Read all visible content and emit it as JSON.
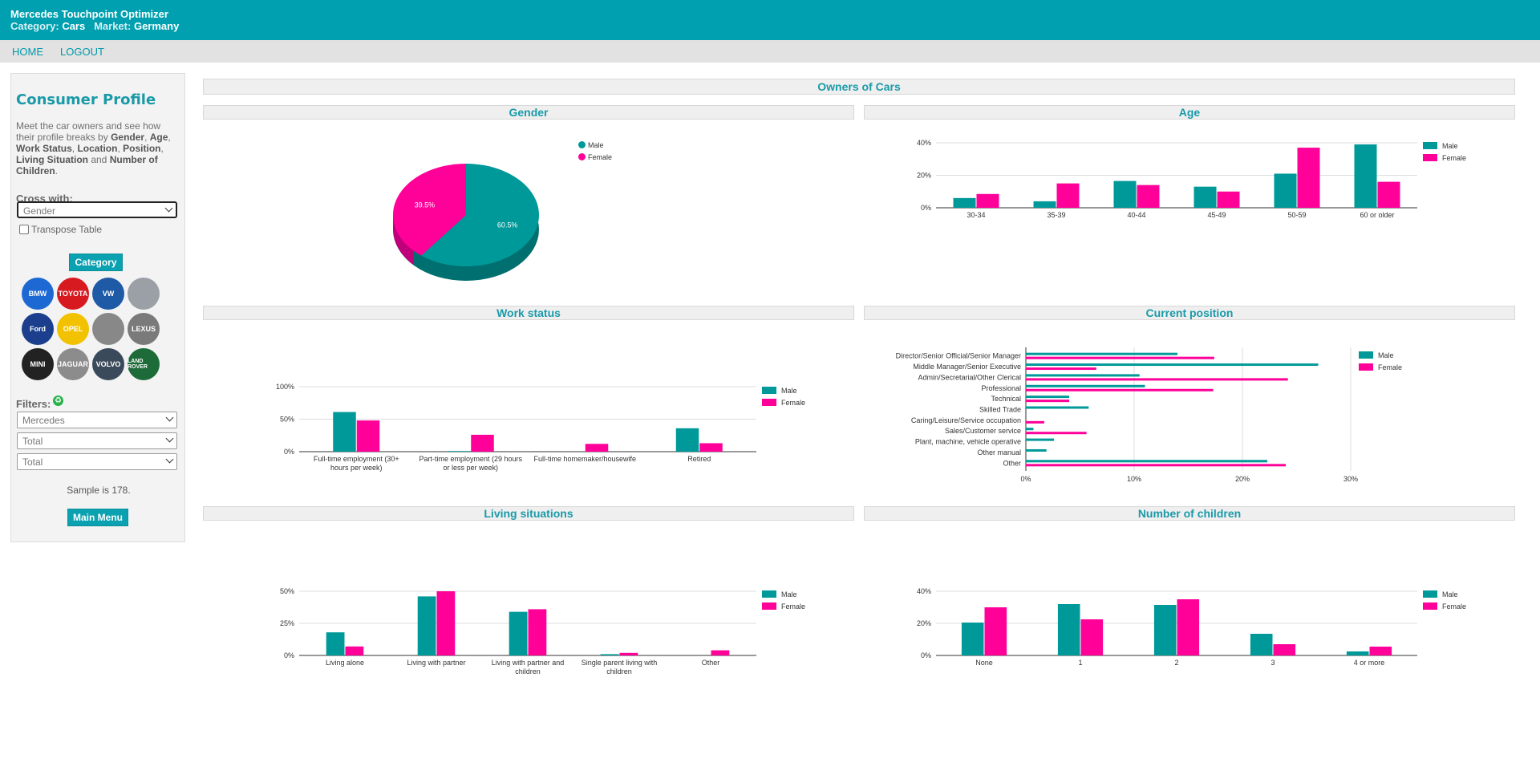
{
  "header": {
    "app_title": "Mercedes Touchpoint Optimizer",
    "category_label": "Category:",
    "category_value": "Cars",
    "market_label": "Market:",
    "market_value": "Germany"
  },
  "nav": {
    "home": "HOME",
    "logout": "LOGOUT"
  },
  "sidebar": {
    "title": "Consumer Profile",
    "desc_intro": "Meet the car owners and see how their profile breaks by ",
    "desc_terms": [
      "Gender",
      "Age",
      "Work Status",
      "Location",
      "Position",
      "Living Situation",
      "Number of Children"
    ],
    "desc_sep": ", ",
    "desc_and": " and ",
    "desc_end": ".",
    "cross_label": "Cross with:",
    "cross_value": "Gender",
    "transpose_label": "Transpose Table",
    "category_button": "Category",
    "logos": [
      {
        "name": "bmw-logo",
        "text": "BMW",
        "color": "#1c69d4"
      },
      {
        "name": "toyota-logo",
        "text": "TOYOTA",
        "color": "#d71920"
      },
      {
        "name": "volkswagen-logo",
        "text": "VW",
        "color": "#1f5aa6"
      },
      {
        "name": "mercedes-logo",
        "text": "",
        "color": "#9aa0a6"
      },
      {
        "name": "ford-logo",
        "text": "Ford",
        "color": "#1b3f8c"
      },
      {
        "name": "opel-logo",
        "text": "OPEL",
        "color": "#f2c200"
      },
      {
        "name": "audi-logo",
        "text": "",
        "color": "#888888"
      },
      {
        "name": "lexus-logo",
        "text": "LEXUS",
        "color": "#7a7a7a"
      },
      {
        "name": "mini-logo",
        "text": "MINI",
        "color": "#222222"
      },
      {
        "name": "jaguar-logo",
        "text": "JAGUAR",
        "color": "#8c8c8c"
      },
      {
        "name": "volvo-logo",
        "text": "VOLVO",
        "color": "#3b4a5a"
      },
      {
        "name": "land-rover-logo",
        "text": "LAND ROVER",
        "color": "#1e6b3a"
      }
    ],
    "filters_label": "Filters:",
    "filter1": "Mercedes",
    "filter2": "Total",
    "filter3": "Total",
    "sample": "Sample is 178.",
    "main_menu": "Main Menu"
  },
  "main": {
    "owners_title": "Owners of Cars"
  },
  "colors": {
    "male": "#009999",
    "female": "#ff0099"
  },
  "legend": {
    "male": "Male",
    "female": "Female"
  },
  "chart_data": [
    {
      "id": "gender",
      "type": "pie",
      "title": "Gender",
      "categories": [
        "Male",
        "Female"
      ],
      "values": [
        60.5,
        39.5
      ],
      "labels": [
        "60.5%",
        "39.5%"
      ]
    },
    {
      "id": "age",
      "type": "bar",
      "title": "Age",
      "categories": [
        "30-34",
        "35-39",
        "40-44",
        "45-49",
        "50-59",
        "60 or older"
      ],
      "series": [
        {
          "name": "Male",
          "values": [
            6,
            4,
            16.5,
            13,
            21,
            39
          ]
        },
        {
          "name": "Female",
          "values": [
            8.5,
            15,
            14,
            10,
            37,
            16
          ]
        }
      ],
      "yticks": [
        "0%",
        "20%",
        "40%"
      ],
      "ylim": [
        0,
        40
      ]
    },
    {
      "id": "work",
      "type": "bar",
      "title": "Work status",
      "categories": [
        "Full-time employment (30+ hours per week)",
        "Part-time employment (29 hours or less per week)",
        "Full-time homemaker/housewife",
        "Retired"
      ],
      "series": [
        {
          "name": "Male",
          "values": [
            61,
            1,
            0,
            36
          ]
        },
        {
          "name": "Female",
          "values": [
            48,
            26,
            12,
            13
          ]
        }
      ],
      "yticks": [
        "0%",
        "50%",
        "100%"
      ],
      "ylim": [
        0,
        100
      ]
    },
    {
      "id": "position",
      "type": "hbar",
      "title": "Current position",
      "categories": [
        "Director/Senior Official/Senior Manager",
        "Middle Manager/Senior Executive",
        "Admin/Secretarial/Other Clerical",
        "Professional",
        "Technical",
        "Skilled Trade",
        "Caring/Leisure/Service occupation",
        "Sales/Customer service",
        "Plant, machine, vehicle operative",
        "Other manual",
        "Other"
      ],
      "series": [
        {
          "name": "Male",
          "values": [
            14,
            27,
            10.5,
            11,
            4,
            5.8,
            0,
            0.7,
            2.6,
            1.9,
            22.3
          ]
        },
        {
          "name": "Female",
          "values": [
            17.4,
            6.5,
            24.2,
            17.3,
            4,
            0,
            1.7,
            5.6,
            0,
            0,
            24
          ]
        }
      ],
      "xticks": [
        "0%",
        "10%",
        "20%",
        "30%"
      ],
      "xlim": [
        0,
        30
      ]
    },
    {
      "id": "living",
      "type": "bar",
      "title": "Living situations",
      "categories": [
        "Living alone",
        "Living with partner",
        "Living with partner and children",
        "Single parent living with children",
        "Other"
      ],
      "series": [
        {
          "name": "Male",
          "values": [
            18,
            46,
            34,
            1,
            0
          ]
        },
        {
          "name": "Female",
          "values": [
            7,
            50,
            36,
            2,
            4
          ]
        }
      ],
      "yticks": [
        "0%",
        "25%",
        "50%"
      ],
      "ylim": [
        0,
        50
      ]
    },
    {
      "id": "children",
      "type": "bar",
      "title": "Number of children",
      "categories": [
        "None",
        "1",
        "2",
        "3",
        "4 or more"
      ],
      "series": [
        {
          "name": "Male",
          "values": [
            20.5,
            32,
            31.5,
            13.5,
            2.5
          ]
        },
        {
          "name": "Female",
          "values": [
            30,
            22.5,
            35,
            7,
            5.5
          ]
        }
      ],
      "yticks": [
        "0%",
        "20%",
        "40%"
      ],
      "ylim": [
        0,
        40
      ]
    }
  ]
}
